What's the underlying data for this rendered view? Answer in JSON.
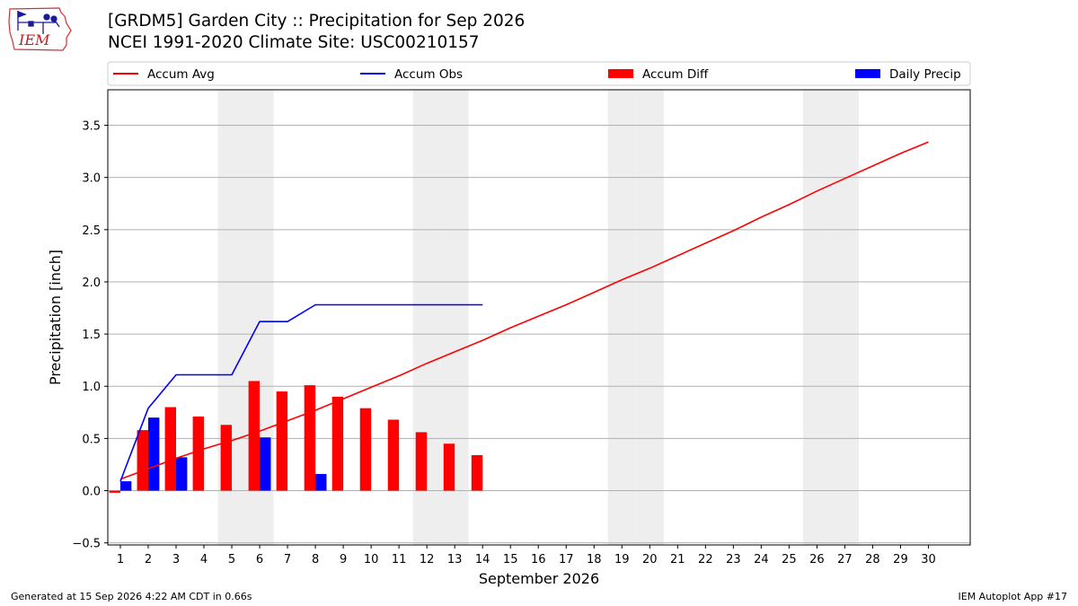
{
  "header": {
    "title_line1": "[GRDM5] Garden City :: Precipitation for Sep 2026",
    "title_line2": "NCEI 1991-2020 Climate Site: USC00210157",
    "logo_text": "IEM"
  },
  "footer": {
    "left": "Generated at 15 Sep 2026 4:22 AM CDT in 0.66s",
    "right": "IEM Autoplot App #17"
  },
  "colors": {
    "accum_avg": "#ff0000",
    "accum_obs": "#0000ff",
    "accum_diff": "#ff0000",
    "daily_precip": "#0000ff",
    "weekend_shade": "#eeeeee",
    "grid": "#b0b0b0"
  },
  "chart_data": {
    "type": "bar",
    "xlabel": "September 2026",
    "ylabel": "Precipitation [inch]",
    "ylim": [
      -0.52,
      3.84
    ],
    "xlim": [
      0.55,
      31.5
    ],
    "grid": "horizontal",
    "legend_position": "top",
    "y_ticks": [
      -0.5,
      0.0,
      0.5,
      1.0,
      1.5,
      2.0,
      2.5,
      3.0,
      3.5
    ],
    "y_tick_labels": [
      "−0.5",
      "0.0",
      "0.5",
      "1.0",
      "1.5",
      "2.0",
      "2.5",
      "3.0",
      "3.5"
    ],
    "x": [
      1,
      2,
      3,
      4,
      5,
      6,
      7,
      8,
      9,
      10,
      11,
      12,
      13,
      14,
      15,
      16,
      17,
      18,
      19,
      20,
      21,
      22,
      23,
      24,
      25,
      26,
      27,
      28,
      29,
      30
    ],
    "weekend_days": [
      5,
      6,
      12,
      13,
      19,
      20,
      26,
      27
    ],
    "legend": [
      {
        "name": "Accum Avg",
        "kind": "line",
        "color": "#ff0000"
      },
      {
        "name": "Accum Obs",
        "kind": "line",
        "color": "#0000ff"
      },
      {
        "name": "Accum Diff",
        "kind": "bar",
        "color": "#ff0000"
      },
      {
        "name": "Daily Precip",
        "kind": "bar",
        "color": "#0000ff"
      }
    ],
    "series": [
      {
        "name": "Accum Avg",
        "type": "line",
        "x": [
          1,
          2,
          3,
          4,
          5,
          6,
          7,
          8,
          9,
          10,
          11,
          12,
          13,
          14,
          15,
          16,
          17,
          18,
          19,
          20,
          21,
          22,
          23,
          24,
          25,
          26,
          27,
          28,
          29,
          30
        ],
        "values": [
          0.11,
          0.21,
          0.31,
          0.4,
          0.48,
          0.57,
          0.67,
          0.77,
          0.88,
          0.99,
          1.1,
          1.22,
          1.33,
          1.44,
          1.56,
          1.67,
          1.78,
          1.9,
          2.02,
          2.13,
          2.25,
          2.37,
          2.49,
          2.62,
          2.74,
          2.87,
          2.99,
          3.11,
          3.23,
          3.34
        ]
      },
      {
        "name": "Accum Obs",
        "type": "line",
        "x": [
          1,
          2,
          3,
          4,
          5,
          6,
          7,
          8,
          9,
          10,
          11,
          12,
          13,
          14
        ],
        "values": [
          0.09,
          0.79,
          1.11,
          1.11,
          1.11,
          1.62,
          1.62,
          1.78,
          1.78,
          1.78,
          1.78,
          1.78,
          1.78,
          1.78
        ]
      },
      {
        "name": "Accum Diff",
        "type": "bar",
        "x": [
          1,
          2,
          3,
          4,
          5,
          6,
          7,
          8,
          9,
          10,
          11,
          12,
          13,
          14
        ],
        "values": [
          -0.02,
          0.58,
          0.8,
          0.71,
          0.63,
          1.05,
          0.95,
          1.01,
          0.9,
          0.79,
          0.68,
          0.56,
          0.45,
          0.34
        ]
      },
      {
        "name": "Daily Precip",
        "type": "bar",
        "x": [
          1,
          2,
          3,
          4,
          5,
          6,
          7,
          8,
          9,
          10,
          11,
          12,
          13,
          14
        ],
        "values": [
          0.09,
          0.7,
          0.32,
          0.0,
          0.0,
          0.51,
          0.0,
          0.16,
          0.0,
          0.0,
          0.0,
          0.0,
          0.0,
          0.0
        ]
      }
    ]
  }
}
